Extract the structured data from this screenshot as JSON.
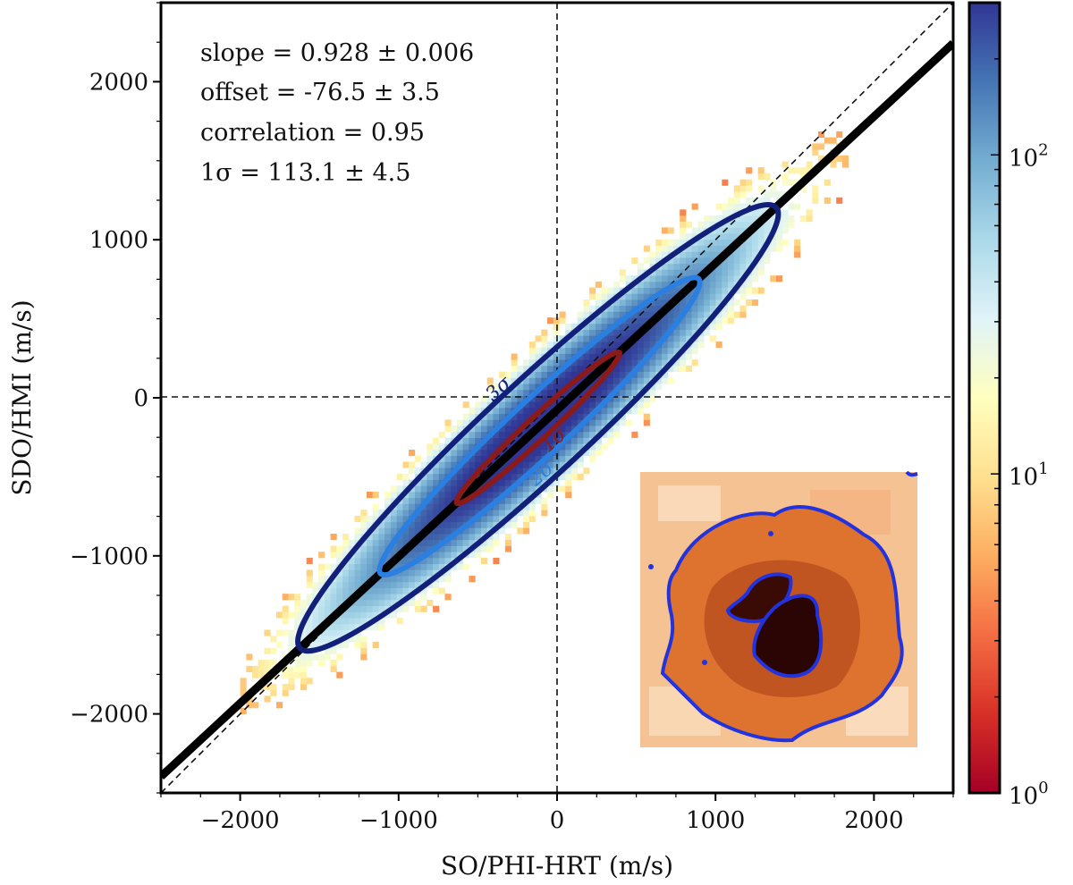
{
  "chart_data": {
    "type": "heatmap",
    "title": "",
    "xlabel": "SO/PHI-HRT (m/s)",
    "ylabel": "SDO/HMI (m/s)",
    "xlim": [
      -2500,
      2500
    ],
    "ylim": [
      -2500,
      2500
    ],
    "xticks": [
      -2000,
      -1000,
      0,
      1000,
      2000
    ],
    "yticks": [
      -2000,
      -1000,
      0,
      1000,
      2000
    ],
    "xtick_labels": [
      "−2000",
      "−1000",
      "0",
      "1000",
      "2000"
    ],
    "ytick_labels": [
      "−2000",
      "−1000",
      "0",
      "1000",
      "2000"
    ],
    "fit": {
      "slope": 0.928,
      "offset": -76.5
    },
    "stats": [
      "slope = 0.928 ± 0.006",
      "offset = -76.5 ± 3.5",
      "correlation = 0.95",
      "1σ = 113.1 ± 4.5"
    ],
    "contours": [
      {
        "label": "1σ",
        "color": "#8b1a1a",
        "center": [
          -120,
          -190
        ],
        "half_len": 700,
        "half_wid": 70
      },
      {
        "label": "2σ",
        "color": "#2a7fe0",
        "center": [
          -110,
          -180
        ],
        "half_len": 1370,
        "half_wid": 175
      },
      {
        "label": "3σ",
        "color": "#12207a",
        "center": [
          -120,
          -190
        ],
        "half_len": 2050,
        "half_wid": 300
      }
    ],
    "colorbar": {
      "scale": "log",
      "min": 1,
      "max": 300,
      "ticks": [
        {
          "base": "10",
          "exp": "0",
          "value": 1
        },
        {
          "base": "10",
          "exp": "1",
          "value": 10
        },
        {
          "base": "10",
          "exp": "2",
          "value": 100
        }
      ],
      "colors": [
        "#a50026",
        "#d73027",
        "#f46d43",
        "#fdae61",
        "#fee090",
        "#ffffbf",
        "#e0f3f8",
        "#abd9e9",
        "#74add1",
        "#4575b4",
        "#313695"
      ]
    },
    "inset": {
      "description_color": "#2233dd"
    }
  }
}
